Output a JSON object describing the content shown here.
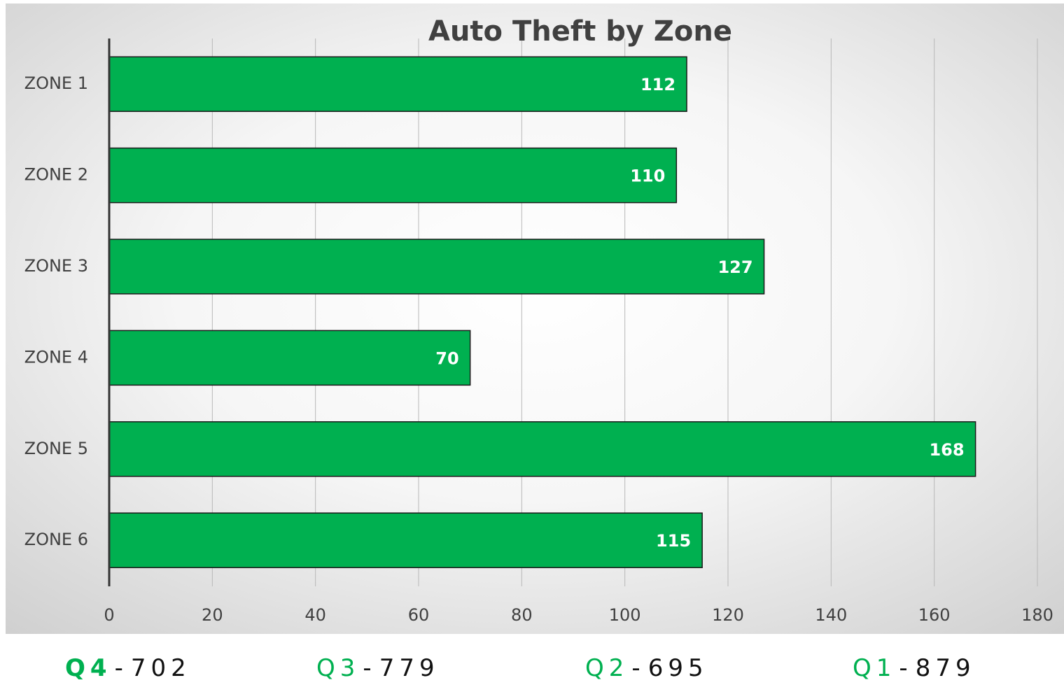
{
  "chart_data": {
    "type": "bar",
    "orientation": "horizontal",
    "title": "Auto Theft by Zone",
    "categories": [
      "ZONE 1",
      "ZONE 2",
      "ZONE 3",
      "ZONE 4",
      "ZONE 5",
      "ZONE 6"
    ],
    "values": [
      112,
      110,
      127,
      70,
      168,
      115
    ],
    "color": "#00b050",
    "xlim": [
      0,
      180
    ],
    "xticks": [
      0,
      20,
      40,
      60,
      80,
      100,
      120,
      140,
      160,
      180
    ],
    "grid": true
  },
  "footer": [
    {
      "quarter": "Q4",
      "separator": "-",
      "total": 702
    },
    {
      "quarter": "Q3",
      "separator": "-",
      "total": 779
    },
    {
      "quarter": "Q2",
      "separator": "-",
      "total": 695
    },
    {
      "quarter": "Q1",
      "separator": "-",
      "total": 879
    }
  ]
}
